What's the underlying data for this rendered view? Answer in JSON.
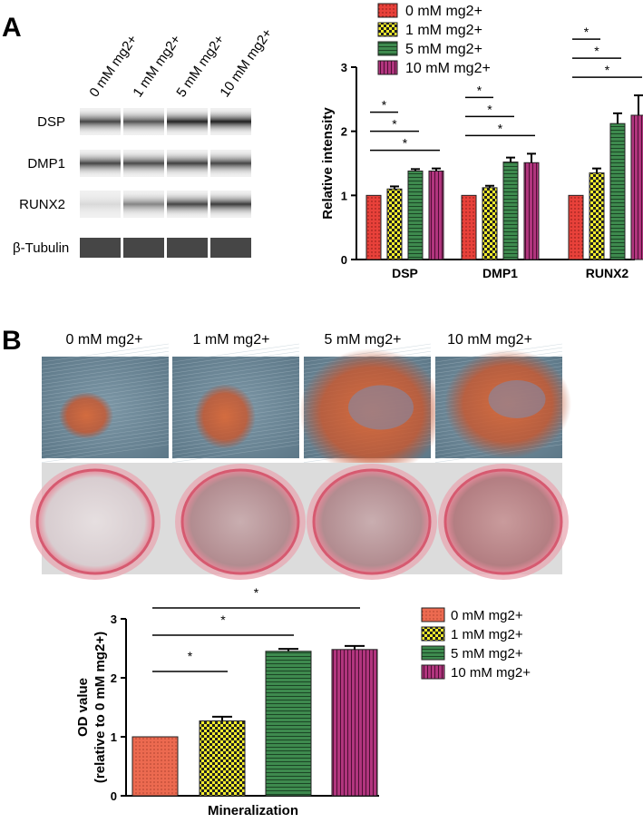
{
  "panel_letters": [
    "A",
    "B"
  ],
  "legend": [
    "0 mM mg2+",
    "1 mM mg2+",
    "5 mM mg2+",
    "10 mM mg2+"
  ],
  "colors": {
    "0 mM mg2+": "#e8413a",
    "1 mM mg2+": "#f2ec2e",
    "5 mM mg2+": "#3e8a4e",
    "10 mM mg2+": "#b1357e",
    "0 mM mg2+ (mineralization)": "#ec6a50"
  },
  "western_blot": {
    "conditions": [
      "0 mM mg2+",
      "1 mM mg2+",
      "5 mM mg2+",
      "10 mM mg2+"
    ],
    "rows": [
      "DSP",
      "DMP1",
      "RUNX2",
      "β-Tubulin"
    ],
    "band_intensity": [
      [
        0.72,
        0.66,
        0.86,
        0.88
      ],
      [
        0.72,
        0.7,
        0.74,
        0.72
      ],
      [
        0.1,
        0.45,
        0.72,
        0.76
      ],
      [
        0.95,
        0.95,
        0.95,
        0.95
      ]
    ]
  },
  "stain_images": {
    "labels": [
      "0 mM mg2+",
      "1 mM mg2+",
      "5 mM mg2+",
      "10 mM mg2+"
    ]
  },
  "chart_data": [
    {
      "type": "bar",
      "categories": [
        "DSP",
        "DMP1",
        "RUNX2"
      ],
      "series": [
        {
          "name": "0 mM mg2+",
          "values": [
            1.0,
            1.0,
            1.0
          ],
          "errors": [
            0,
            0,
            0
          ]
        },
        {
          "name": "1 mM mg2+",
          "values": [
            1.1,
            1.12,
            1.35
          ],
          "errors": [
            0.04,
            0.03,
            0.07
          ]
        },
        {
          "name": "5 mM mg2+",
          "values": [
            1.38,
            1.52,
            2.12
          ],
          "errors": [
            0.03,
            0.07,
            0.16
          ]
        },
        {
          "name": "10 mM mg2+",
          "values": [
            1.38,
            1.51,
            2.25
          ],
          "errors": [
            0.04,
            0.14,
            0.31
          ]
        }
      ],
      "ylabel": "Relative intensity",
      "ylim": [
        0,
        3
      ],
      "yticks": [
        0,
        1,
        2,
        3
      ],
      "legend_position": "top-left",
      "significance": [
        {
          "group": "DSP",
          "from": "0 mM mg2+",
          "to": "1 mM mg2+",
          "label": "*"
        },
        {
          "group": "DSP",
          "from": "0 mM mg2+",
          "to": "5 mM mg2+",
          "label": "*"
        },
        {
          "group": "DSP",
          "from": "0 mM mg2+",
          "to": "10 mM mg2+",
          "label": "*"
        },
        {
          "group": "DMP1",
          "from": "0 mM mg2+",
          "to": "1 mM mg2+",
          "label": "*"
        },
        {
          "group": "DMP1",
          "from": "0 mM mg2+",
          "to": "5 mM mg2+",
          "label": "*"
        },
        {
          "group": "DMP1",
          "from": "0 mM mg2+",
          "to": "10 mM mg2+",
          "label": "*"
        },
        {
          "group": "RUNX2",
          "from": "0 mM mg2+",
          "to": "1 mM mg2+",
          "label": "*"
        },
        {
          "group": "RUNX2",
          "from": "0 mM mg2+",
          "to": "5 mM mg2+",
          "label": "*"
        },
        {
          "group": "RUNX2",
          "from": "0 mM mg2+",
          "to": "10 mM mg2+",
          "label": "*"
        }
      ]
    },
    {
      "type": "bar",
      "categories": [
        "0 mM mg2+",
        "1 mM mg2+",
        "5 mM mg2+",
        "10 mM mg2+"
      ],
      "values": [
        1.0,
        1.27,
        2.45,
        2.48
      ],
      "errors": [
        0,
        0.07,
        0.04,
        0.06
      ],
      "xlabel": "Mineralization",
      "ylabel": "OD value\n(relative to 0 mM mg2+)",
      "ylim": [
        0,
        3
      ],
      "yticks": [
        0,
        1,
        2,
        3
      ],
      "legend_position": "right",
      "significance": [
        {
          "from": "0 mM mg2+",
          "to": "1 mM mg2+",
          "label": "*"
        },
        {
          "from": "0 mM mg2+",
          "to": "5 mM mg2+",
          "label": "*"
        },
        {
          "from": "0 mM mg2+",
          "to": "10 mM mg2+",
          "label": "*"
        }
      ]
    }
  ]
}
